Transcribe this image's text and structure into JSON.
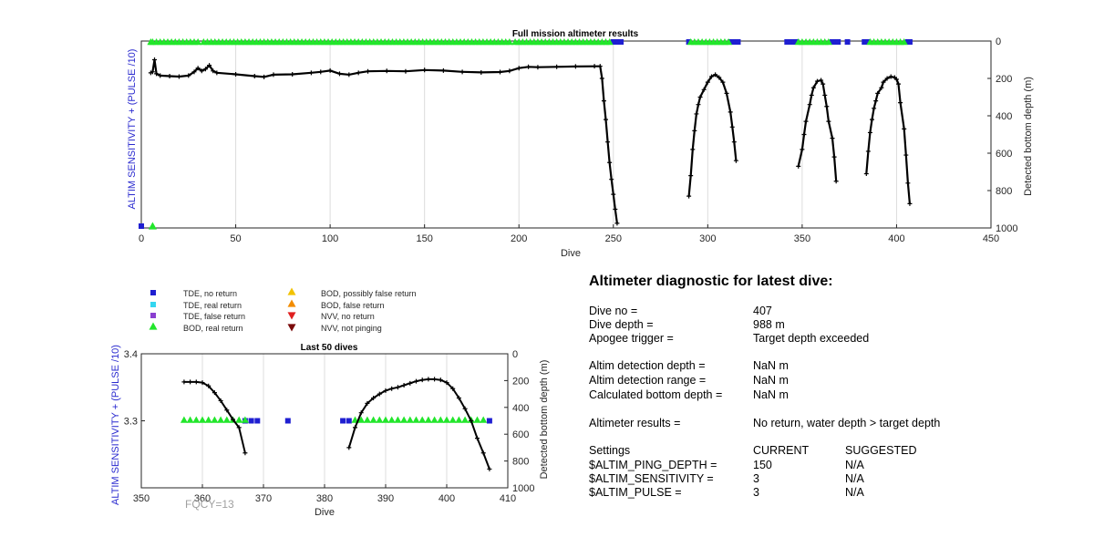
{
  "colors": {
    "line": "#000000",
    "grid": "#dcdcdc",
    "tde_no_return": "#1f1fd1",
    "tde_real_return": "#33d6f0",
    "tde_false_return": "#8a3fd0",
    "bod_real_return": "#22e62b",
    "bod_possibly_false": "#f2c200",
    "bod_false": "#f28c00",
    "nvv_no_return": "#e02020",
    "nvv_not_pinging": "#7a0a0a",
    "blue_label": "#2a2acf"
  },
  "chart_data": [
    {
      "type": "line",
      "title": "Full mission altimeter results",
      "xlabel": "Dive",
      "ylabel_left": "ALTIM SENSITIVITY + (PULSE /10)",
      "ylabel_right": "Detected bottom depth (m)",
      "xlim": [
        0,
        450
      ],
      "ylim_right": [
        0,
        1000
      ],
      "y_right_reversed": true,
      "x_ticks": [
        "0",
        "50",
        "100",
        "150",
        "200",
        "250",
        "300",
        "350",
        "400",
        "450"
      ],
      "y_right_ticks": [
        "0",
        "200",
        "400",
        "600",
        "800",
        "1000"
      ],
      "grid_x": true,
      "series": [
        {
          "name": "depth",
          "segments": [
            [
              [
                5,
                170
              ],
              [
                6,
                165
              ],
              [
                7,
                100
              ],
              [
                8,
                175
              ],
              [
                10,
                185
              ],
              [
                15,
                188
              ],
              [
                20,
                190
              ],
              [
                25,
                185
              ],
              [
                28,
                165
              ],
              [
                30,
                145
              ],
              [
                32,
                160
              ],
              [
                34,
                150
              ],
              [
                36,
                130
              ],
              [
                38,
                160
              ],
              [
                40,
                170
              ],
              [
                50,
                178
              ],
              [
                60,
                188
              ],
              [
                65,
                192
              ],
              [
                70,
                180
              ],
              [
                80,
                178
              ],
              [
                90,
                170
              ],
              [
                95,
                165
              ],
              [
                100,
                158
              ],
              [
                105,
                175
              ],
              [
                110,
                180
              ],
              [
                115,
                170
              ],
              [
                120,
                162
              ],
              [
                130,
                160
              ],
              [
                140,
                162
              ],
              [
                150,
                155
              ],
              [
                160,
                158
              ],
              [
                170,
                165
              ],
              [
                180,
                168
              ],
              [
                190,
                166
              ],
              [
                195,
                160
              ],
              [
                200,
                145
              ],
              [
                205,
                138
              ],
              [
                210,
                140
              ],
              [
                220,
                138
              ],
              [
                230,
                136
              ],
              [
                240,
                135
              ],
              [
                243,
                135
              ],
              [
                244,
                200
              ],
              [
                245,
                320
              ],
              [
                246,
                420
              ],
              [
                247,
                540
              ],
              [
                248,
                650
              ],
              [
                249,
                740
              ],
              [
                250,
                820
              ],
              [
                251,
                900
              ],
              [
                252,
                975
              ]
            ],
            [
              [
                290,
                830
              ],
              [
                291,
                720
              ],
              [
                292,
                580
              ],
              [
                293,
                480
              ],
              [
                294,
                390
              ],
              [
                295,
                340
              ],
              [
                296,
                300
              ],
              [
                298,
                260
              ],
              [
                300,
                220
              ],
              [
                302,
                190
              ],
              [
                304,
                180
              ],
              [
                306,
                195
              ],
              [
                308,
                220
              ],
              [
                310,
                280
              ],
              [
                312,
                380
              ],
              [
                313,
                460
              ],
              [
                314,
                540
              ],
              [
                315,
                640
              ]
            ],
            [
              [
                348,
                670
              ],
              [
                350,
                580
              ],
              [
                351,
                500
              ],
              [
                352,
                430
              ],
              [
                354,
                340
              ],
              [
                355,
                290
              ],
              [
                356,
                250
              ],
              [
                358,
                215
              ],
              [
                360,
                210
              ],
              [
                361,
                230
              ],
              [
                362,
                290
              ],
              [
                363,
                350
              ],
              [
                364,
                430
              ],
              [
                366,
                520
              ],
              [
                367,
                620
              ],
              [
                368,
                750
              ]
            ],
            [
              [
                384,
                710
              ],
              [
                385,
                590
              ],
              [
                386,
                490
              ],
              [
                387,
                420
              ],
              [
                388,
                360
              ],
              [
                389,
                320
              ],
              [
                390,
                280
              ],
              [
                392,
                250
              ],
              [
                393,
                220
              ],
              [
                395,
                200
              ],
              [
                397,
                190
              ],
              [
                399,
                195
              ],
              [
                400,
                205
              ],
              [
                401,
                230
              ],
              [
                402,
                330
              ],
              [
                404,
                470
              ],
              [
                405,
                610
              ],
              [
                406,
                760
              ],
              [
                407,
                870
              ]
            ]
          ]
        }
      ],
      "tde_no_return_x": [
        0,
        250,
        251,
        252,
        253,
        254,
        290,
        312,
        313,
        314,
        315,
        316,
        342,
        343,
        344,
        345,
        346,
        347,
        366,
        367,
        368,
        369,
        374,
        383,
        384,
        385,
        406,
        407
      ],
      "bod_real_return_x": [
        5,
        6,
        8,
        10,
        12,
        14,
        16,
        18,
        20,
        22,
        24,
        26,
        28,
        30,
        33,
        35,
        37,
        39,
        41,
        43,
        45,
        47,
        49,
        51,
        53,
        55,
        57,
        59,
        61,
        63,
        65,
        67,
        69,
        71,
        73,
        75,
        77,
        79,
        81,
        83,
        85,
        87,
        89,
        91,
        93,
        95,
        97,
        99,
        101,
        103,
        105,
        107,
        109,
        111,
        113,
        115,
        117,
        119,
        121,
        123,
        125,
        127,
        129,
        131,
        133,
        135,
        137,
        139,
        141,
        143,
        145,
        147,
        149,
        151,
        153,
        155,
        157,
        159,
        161,
        163,
        165,
        167,
        169,
        171,
        173,
        175,
        177,
        179,
        181,
        183,
        185,
        187,
        189,
        191,
        193,
        195,
        198,
        200,
        202,
        204,
        206,
        208,
        210,
        212,
        214,
        216,
        218,
        220,
        222,
        224,
        226,
        228,
        230,
        232,
        234,
        236,
        238,
        240,
        242,
        244,
        246,
        248,
        291,
        293,
        295,
        297,
        299,
        301,
        303,
        305,
        307,
        309,
        311,
        348,
        350,
        352,
        354,
        356,
        358,
        360,
        362,
        364,
        386,
        388,
        390,
        392,
        394,
        396,
        398,
        400,
        402,
        404
      ],
      "bod_bottom_marker_x": 6
    },
    {
      "type": "line",
      "title": "Last 50 dives",
      "xlabel": "Dive",
      "ylabel_left": "ALTIM SENSITIVITY + (PULSE /10)",
      "ylabel_right": "Detected bottom depth (m)",
      "xlim": [
        350,
        410
      ],
      "ylim_left": [
        3.2,
        3.4
      ],
      "ylim_right": [
        0,
        1000
      ],
      "y_right_reversed": true,
      "x_ticks": [
        "350",
        "360",
        "370",
        "380",
        "390",
        "400",
        "410"
      ],
      "y_left_ticks": [
        "3.3",
        "3.4"
      ],
      "y_right_ticks": [
        "0",
        "200",
        "400",
        "600",
        "800",
        "1000"
      ],
      "grid_x": true,
      "series": [
        {
          "name": "depth",
          "segments": [
            [
              [
                357,
                210
              ],
              [
                358,
                210
              ],
              [
                359,
                210
              ],
              [
                360,
                215
              ],
              [
                361,
                240
              ],
              [
                362,
                290
              ],
              [
                363,
                350
              ],
              [
                364,
                420
              ],
              [
                365,
                490
              ],
              [
                366,
                550
              ],
              [
                367,
                740
              ]
            ],
            [
              [
                384,
                700
              ],
              [
                385,
                550
              ],
              [
                386,
                440
              ],
              [
                387,
                370
              ],
              [
                388,
                330
              ],
              [
                389,
                300
              ],
              [
                390,
                275
              ],
              [
                391,
                260
              ],
              [
                392,
                250
              ],
              [
                393,
                235
              ],
              [
                394,
                220
              ],
              [
                395,
                205
              ],
              [
                396,
                195
              ],
              [
                397,
                190
              ],
              [
                398,
                190
              ],
              [
                399,
                195
              ],
              [
                400,
                215
              ],
              [
                401,
                260
              ],
              [
                402,
                330
              ],
              [
                403,
                410
              ],
              [
                404,
                500
              ],
              [
                405,
                630
              ],
              [
                406,
                740
              ],
              [
                407,
                860
              ]
            ]
          ]
        }
      ],
      "sensitivity": 3.3,
      "tde_no_return_x": [
        367,
        368,
        369,
        374,
        383,
        384,
        407
      ],
      "bod_real_return_x": [
        357,
        358,
        359,
        360,
        361,
        362,
        363,
        364,
        365,
        366,
        367,
        385,
        386,
        387,
        388,
        389,
        390,
        391,
        392,
        393,
        394,
        395,
        396,
        397,
        398,
        399,
        400,
        401,
        402,
        403,
        404,
        405,
        406
      ],
      "annotation": "FQCY=13"
    }
  ],
  "legend": {
    "col1": [
      {
        "label": "TDE, no return",
        "shape": "square",
        "color": "#1f1fd1"
      },
      {
        "label": "TDE, real return",
        "shape": "square",
        "color": "#33d6f0"
      },
      {
        "label": "TDE, false return",
        "shape": "square",
        "color": "#8a3fd0"
      },
      {
        "label": "BOD, real return",
        "shape": "triangle-up",
        "color": "#22e62b"
      }
    ],
    "col2": [
      {
        "label": "BOD, possibly false return",
        "shape": "triangle-up",
        "color": "#f2c200"
      },
      {
        "label": "BOD, false return",
        "shape": "triangle-up",
        "color": "#f28c00"
      },
      {
        "label": "NVV, no return",
        "shape": "triangle-down",
        "color": "#e02020"
      },
      {
        "label": "NVV, not pinging",
        "shape": "triangle-down",
        "color": "#7a0a0a"
      }
    ]
  },
  "diagnostic": {
    "title": "Altimeter diagnostic for latest dive:",
    "rows": [
      {
        "label": "Dive no =",
        "value": "407"
      },
      {
        "label": "Dive depth =",
        "value": "988 m"
      },
      {
        "label": "Apogee trigger =",
        "value": "Target depth exceeded"
      },
      {
        "label": "Altim detection depth =",
        "value": "NaN m"
      },
      {
        "label": "Altim detection range =",
        "value": "NaN m"
      },
      {
        "label": "Calculated bottom depth =",
        "value": "NaN m"
      },
      {
        "label": "Altimeter results =",
        "value": "No return, water depth > target depth"
      }
    ],
    "settings": {
      "header": [
        "Settings",
        "CURRENT",
        "SUGGESTED"
      ],
      "rows": [
        {
          "name": "$ALTIM_PING_DEPTH =",
          "current": "150",
          "suggested": "N/A"
        },
        {
          "name": "$ALTIM_SENSITIVITY =",
          "current": "3",
          "suggested": "N/A"
        },
        {
          "name": "$ALTIM_PULSE =",
          "current": "3",
          "suggested": "N/A"
        }
      ]
    }
  }
}
